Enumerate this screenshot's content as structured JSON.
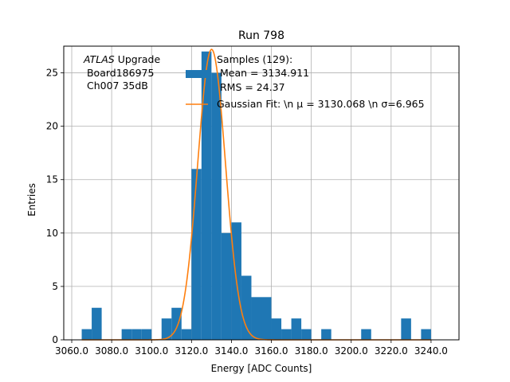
{
  "chart_data": {
    "type": "bar",
    "title": "Run 798",
    "xlabel": "Energy [ADC Counts]",
    "ylabel": "Entries",
    "xlim": [
      3056,
      3254
    ],
    "ylim": [
      0,
      27.5
    ],
    "xticks": [
      3060,
      3080,
      3100,
      3120,
      3140,
      3160,
      3180,
      3200,
      3220,
      3240
    ],
    "xtick_labels": [
      "3060.0",
      "3080.0",
      "3100.0",
      "3120.0",
      "3140.0",
      "3160.0",
      "3180.0",
      "3200.0",
      "3220.0",
      "3240.0"
    ],
    "yticks": [
      0,
      5,
      10,
      15,
      20,
      25
    ],
    "grid": true,
    "legend_position": "top-right",
    "bin_edges": [
      3065,
      3070,
      3075,
      3080,
      3085,
      3090,
      3095,
      3100,
      3105,
      3110,
      3115,
      3120,
      3125,
      3130,
      3135,
      3140,
      3145,
      3150,
      3155,
      3160,
      3165,
      3170,
      3175,
      3180,
      3185,
      3190,
      3195,
      3200,
      3205,
      3210,
      3215,
      3220,
      3225,
      3230,
      3235,
      3240
    ],
    "counts": [
      1,
      3,
      0,
      0,
      1,
      1,
      1,
      0,
      2,
      3,
      1,
      16,
      27,
      25,
      10,
      11,
      6,
      4,
      4,
      2,
      1,
      2,
      1,
      0,
      1,
      0,
      0,
      0,
      1,
      0,
      0,
      0,
      2,
      0,
      1
    ],
    "histogram_color": "#1f77b4",
    "fit_color": "#ff7f0e",
    "fit": {
      "mu": 3130.068,
      "sigma": 6.965,
      "peak": 27.2
    },
    "annotation": [
      "ATLAS",
      " Upgrade",
      " Board186975",
      " Ch007 35dB"
    ],
    "series": [
      {
        "name": "Samples (129):",
        "name_lines": [
          "Samples (129):",
          " Mean = 3134.911",
          " RMS = 24.37"
        ],
        "kind": "histogram"
      },
      {
        "name": "Gaussian Fit: \\n μ = 3130.068 \\n σ=6.965",
        "kind": "line"
      }
    ]
  }
}
